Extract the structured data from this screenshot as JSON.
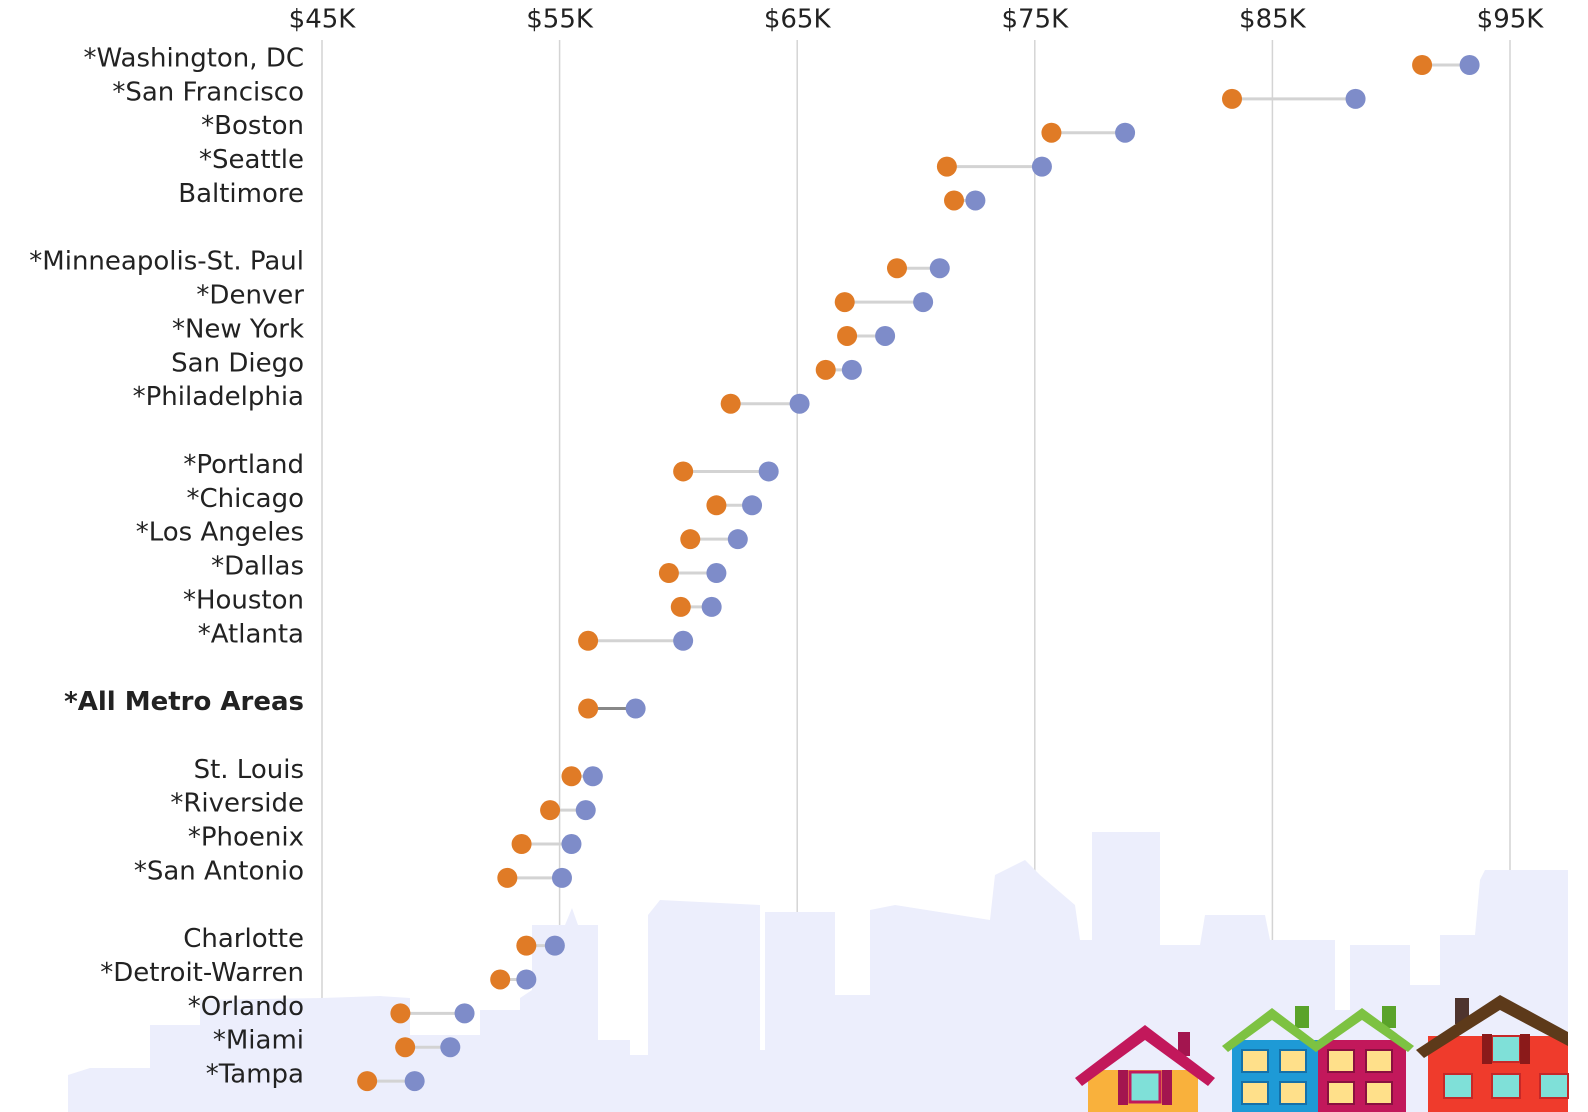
{
  "chart_data": {
    "type": "dumbbell",
    "categories": [
      "*Washington, DC",
      "*San Francisco",
      "*Boston",
      "*Seattle",
      "Baltimore",
      null,
      "*Minneapolis-St. Paul",
      "*Denver",
      "*New York",
      "San Diego",
      "*Philadelphia",
      null,
      "*Portland",
      "*Chicago",
      "*Los Angeles",
      "*Dallas",
      "*Houston",
      "*Atlanta",
      null,
      "*All Metro Areas",
      null,
      "St. Louis",
      "*Riverside",
      "*Phoenix",
      "*San Antonio",
      null,
      "Charlotte",
      "*Detroit-Warren",
      "*Orlando",
      "*Miami",
      "*Tampa"
    ],
    "series": [
      {
        "color": "#e07b26",
        "values": [
          91.3,
          83.3,
          75.7,
          71.3,
          71.6,
          null,
          69.2,
          67.0,
          67.1,
          66.2,
          62.2,
          null,
          60.2,
          61.6,
          60.5,
          59.6,
          60.1,
          56.2,
          null,
          56.2,
          null,
          55.5,
          54.6,
          53.4,
          52.8,
          null,
          53.6,
          52.5,
          48.3,
          48.5,
          46.9
        ]
      },
      {
        "color": "#7e8cc9",
        "values": [
          93.3,
          88.5,
          78.8,
          75.3,
          72.5,
          null,
          71.0,
          70.3,
          68.7,
          67.3,
          65.1,
          null,
          63.8,
          63.1,
          62.5,
          61.6,
          61.4,
          60.2,
          null,
          58.2,
          null,
          56.4,
          56.1,
          55.5,
          55.1,
          null,
          54.8,
          53.6,
          51.0,
          50.4,
          48.9
        ]
      }
    ],
    "xlim": [
      45,
      95
    ],
    "xticks": [
      {
        "value": 45,
        "label": "$45K"
      },
      {
        "value": 55,
        "label": "$55K"
      },
      {
        "value": 65,
        "label": "$65K"
      },
      {
        "value": 75,
        "label": "$75K"
      },
      {
        "value": 85,
        "label": "$85K"
      },
      {
        "value": 95,
        "label": "$95K"
      }
    ],
    "grid": true
  }
}
